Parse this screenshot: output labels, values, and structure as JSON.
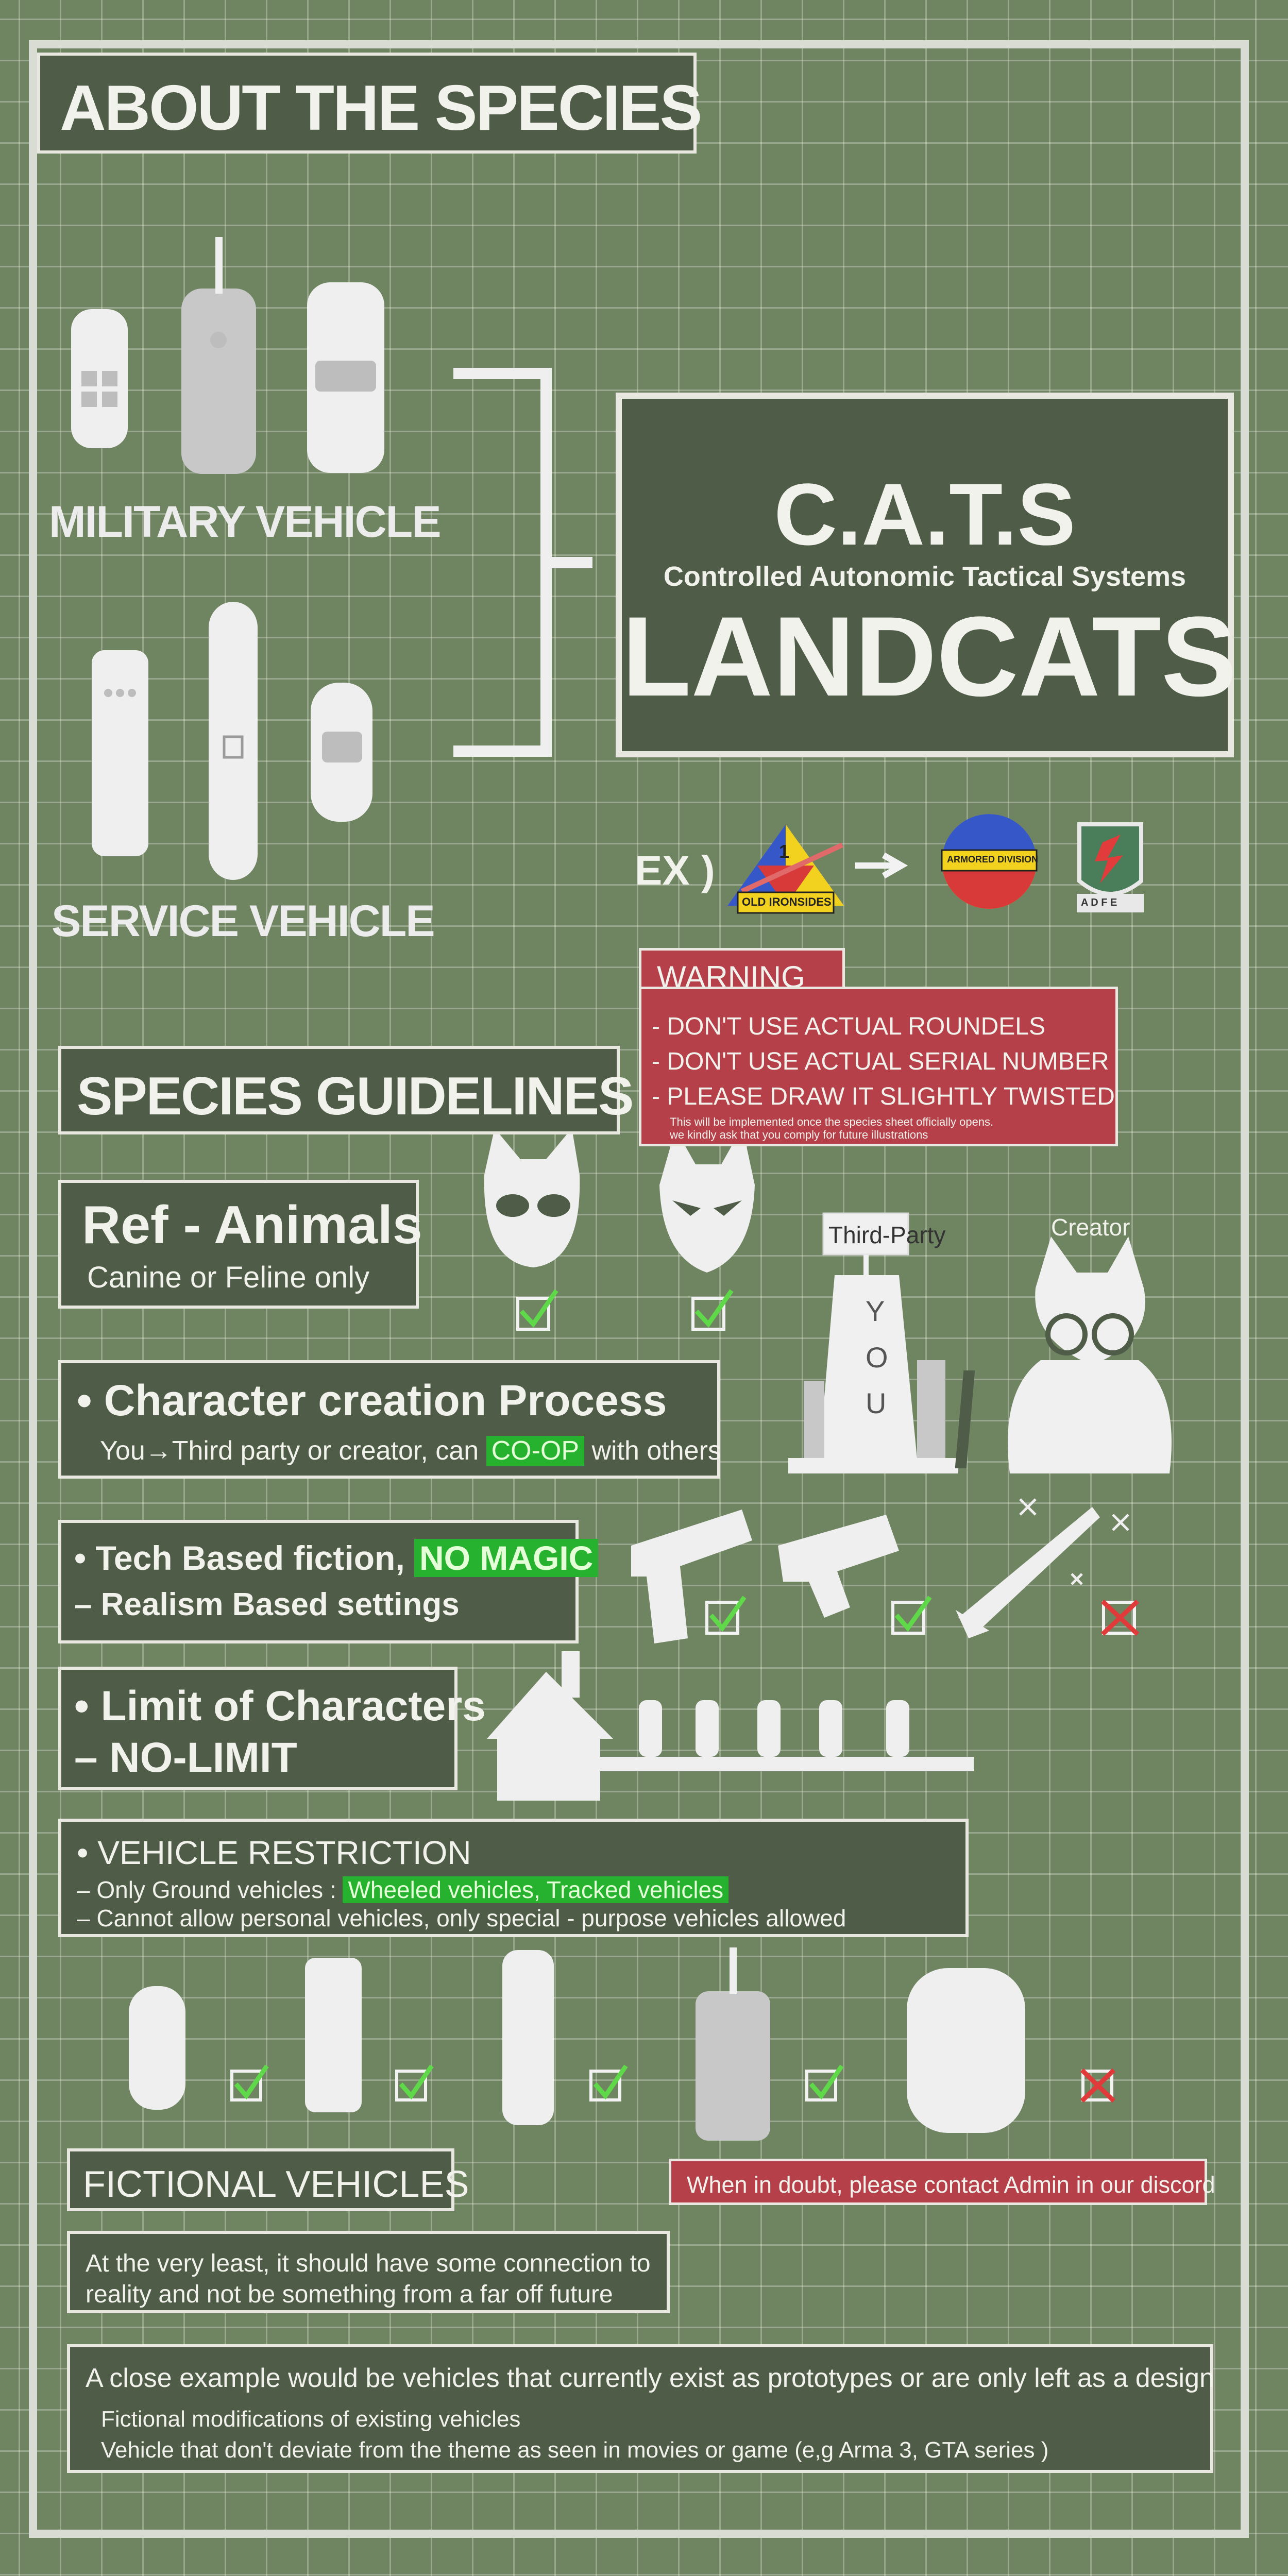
{
  "about_title": "ABOUT THE SPECIES",
  "military_label": "MILITARY VEHICLE",
  "service_label": "SERVICE VEHICLE",
  "cats": {
    "acronym": "C.A.T.S",
    "full_name": "Controlled Autonomic Tactical Systems",
    "name": "LANDCATS"
  },
  "example": {
    "label": "EX )",
    "insignia_1_text": "OLD IRONSIDES",
    "insignia_1_number": "1",
    "insignia_2_text": "ARMORED DIVISION",
    "insignia_3_text": "A D F E"
  },
  "warning": {
    "title": "WARNING",
    "items": [
      "- DON'T USE ACTUAL ROUNDELS",
      "- DON'T USE ACTUAL SERIAL NUMBER",
      "- PLEASE DRAW IT SLIGHTLY TWISTED"
    ],
    "note_1": "This will be implemented once the species sheet officially opens.",
    "note_2": "we kindly ask that you comply for future illustrations"
  },
  "guidelines_title": "SPECIES GUIDELINES",
  "ref_animals": {
    "title": "Ref - Animals",
    "subtitle": "Canine or Feline only"
  },
  "character_creation": {
    "title": "• Character creation Process",
    "line_prefix": "You→Third party or creator, can ",
    "line_highlight": "CO-OP",
    "line_suffix": " with others",
    "sign_third_party": "Third-Party",
    "sign_creator": "Creator",
    "tower_text": "Y O U"
  },
  "tech": {
    "title_prefix": "• Tech Based fiction, ",
    "title_highlight": "NO MAGIC",
    "line": "– Realism Based settings"
  },
  "limit": {
    "title": "• Limit of Characters",
    "line": "– NO-LIMIT"
  },
  "vehicle_restriction": {
    "title": "• VEHICLE RESTRICTION",
    "line1_prefix": "– Only Ground vehicles : ",
    "line1_highlight": "Wheeled vehicles, Tracked vehicles",
    "line2": "– Cannot allow personal vehicles, only special - purpose vehicles allowed"
  },
  "fictional": {
    "title": "FICTIONAL VEHICLES",
    "contact": "When in doubt, please contact Admin in our discord",
    "note_line1": "At the very least, it should have some connection to",
    "note_line2": "reality and not be something from a far off future",
    "example_title": "A close example would be vehicles that currently exist as prototypes or are only left as a design",
    "example_line1": "Fictional modifications of existing vehicles",
    "example_line2": "Vehicle that don't deviate from the theme as seen in movies or game (e,g Arma 3, GTA series )"
  },
  "colors": {
    "background": "#6f8460",
    "box": "#4f5c47",
    "warning_red": "#b5404a",
    "highlight_green": "#26b22e",
    "check_green": "#5fd84a",
    "cross_red": "#e03a3a"
  }
}
